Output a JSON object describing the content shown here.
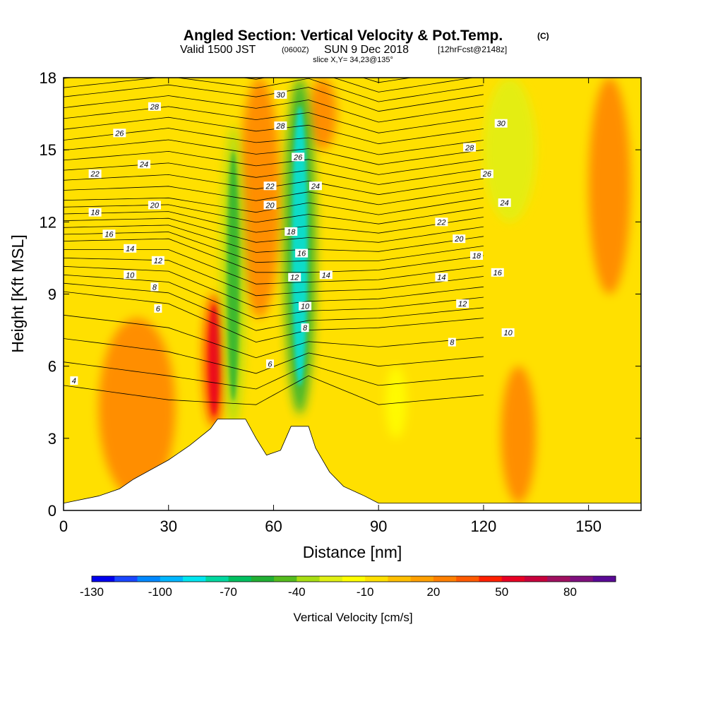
{
  "header": {
    "title": "Angled Section: Vertical Velocity & Pot.Temp.",
    "title_mark": "(C)",
    "valid_prefix": "Valid 1500 JST",
    "valid_utc": "(0600Z)",
    "valid_date": "SUN 9 Dec 2018",
    "forecast": "[12hrFcst@2148z]",
    "slice": "slice X,Y= 34,23@135°"
  },
  "chart_data": {
    "type": "heatmap",
    "xlabel": "Distance [nm]",
    "ylabel": "Height [Kft MSL]",
    "xlim": [
      0,
      165
    ],
    "ylim": [
      0,
      18
    ],
    "x_ticks": [
      0,
      30,
      60,
      90,
      120,
      150
    ],
    "y_ticks": [
      0,
      3,
      6,
      9,
      12,
      15,
      18
    ],
    "colorbar": {
      "label": "Vertical Velocity [cm/s]",
      "tick_labels": [
        "-130",
        "-100",
        "-70",
        "-40",
        "-10",
        "20",
        "50",
        "80"
      ],
      "tick_values": [
        -130,
        -100,
        -70,
        -40,
        -10,
        20,
        50,
        80
      ],
      "range": [
        -130,
        100
      ],
      "colors": [
        "#0000ee",
        "#1a46ff",
        "#0088ff",
        "#00b6ff",
        "#00e6f0",
        "#00d8a0",
        "#00c060",
        "#22b034",
        "#55bc1e",
        "#a8de14",
        "#e0f014",
        "#ffff00",
        "#ffe000",
        "#ffbf00",
        "#ffa000",
        "#ff8000",
        "#ff5a00",
        "#ff2000",
        "#e80024",
        "#c8003c",
        "#a01060",
        "#80107e",
        "#5a0a96"
      ]
    },
    "velocity_features": [
      {
        "kind": "updraft",
        "x": [
          10,
          32
        ],
        "y": [
          0.5,
          8
        ],
        "value": 20
      },
      {
        "kind": "updraft",
        "x": [
          40,
          46
        ],
        "y": [
          3.5,
          9
        ],
        "value": 40
      },
      {
        "kind": "updraft",
        "x": [
          50,
          62
        ],
        "y": [
          8,
          18
        ],
        "value": 25
      },
      {
        "kind": "updraft",
        "x": [
          70,
          78
        ],
        "y": [
          15,
          18
        ],
        "value": 20
      },
      {
        "kind": "downdraft",
        "x": [
          45,
          52
        ],
        "y": [
          3.5,
          16
        ],
        "value": -40
      },
      {
        "kind": "downdraft",
        "x": [
          63,
          72
        ],
        "y": [
          4,
          18
        ],
        "value": -60
      },
      {
        "kind": "downdraft",
        "x": [
          120,
          135
        ],
        "y": [
          12,
          18
        ],
        "value": -25
      },
      {
        "kind": "downdraft",
        "x": [
          92,
          98
        ],
        "y": [
          3,
          6
        ],
        "value": -20
      },
      {
        "kind": "updraft",
        "x": [
          125,
          135
        ],
        "y": [
          0.3,
          6
        ],
        "value": 20
      },
      {
        "kind": "updraft",
        "x": [
          150,
          162
        ],
        "y": [
          9,
          18
        ],
        "value": 20
      }
    ],
    "terrain": [
      {
        "x": 0,
        "y": 0.3
      },
      {
        "x": 10,
        "y": 0.6
      },
      {
        "x": 16,
        "y": 0.9
      },
      {
        "x": 20,
        "y": 1.3
      },
      {
        "x": 25,
        "y": 1.7
      },
      {
        "x": 30,
        "y": 2.1
      },
      {
        "x": 36,
        "y": 2.7
      },
      {
        "x": 42,
        "y": 3.4
      },
      {
        "x": 44,
        "y": 3.8
      },
      {
        "x": 52,
        "y": 3.8
      },
      {
        "x": 55,
        "y": 3.0
      },
      {
        "x": 58,
        "y": 2.3
      },
      {
        "x": 62,
        "y": 2.5
      },
      {
        "x": 65,
        "y": 3.5
      },
      {
        "x": 70,
        "y": 3.5
      },
      {
        "x": 72,
        "y": 2.6
      },
      {
        "x": 76,
        "y": 1.6
      },
      {
        "x": 80,
        "y": 1.0
      },
      {
        "x": 86,
        "y": 0.6
      },
      {
        "x": 90,
        "y": 0.3
      },
      {
        "x": 165,
        "y": 0.3
      }
    ],
    "contour_labels": [
      {
        "text": "28",
        "x": 26,
        "y": 16.8
      },
      {
        "text": "26",
        "x": 16,
        "y": 15.7
      },
      {
        "text": "24",
        "x": 23,
        "y": 14.4
      },
      {
        "text": "22",
        "x": 9,
        "y": 14.0
      },
      {
        "text": "20",
        "x": 26,
        "y": 12.7
      },
      {
        "text": "18",
        "x": 9,
        "y": 12.4
      },
      {
        "text": "16",
        "x": 13,
        "y": 11.5
      },
      {
        "text": "14",
        "x": 19,
        "y": 10.9
      },
      {
        "text": "12",
        "x": 27,
        "y": 10.4
      },
      {
        "text": "10",
        "x": 19,
        "y": 9.8
      },
      {
        "text": "8",
        "x": 26,
        "y": 9.3
      },
      {
        "text": "6",
        "x": 27,
        "y": 8.4
      },
      {
        "text": "4",
        "x": 3,
        "y": 5.4
      },
      {
        "text": "30",
        "x": 62,
        "y": 17.3
      },
      {
        "text": "28",
        "x": 62,
        "y": 16.0
      },
      {
        "text": "26",
        "x": 67,
        "y": 14.7
      },
      {
        "text": "24",
        "x": 72,
        "y": 13.5
      },
      {
        "text": "22",
        "x": 59,
        "y": 13.5
      },
      {
        "text": "20",
        "x": 59,
        "y": 12.7
      },
      {
        "text": "18",
        "x": 65,
        "y": 11.6
      },
      {
        "text": "16",
        "x": 68,
        "y": 10.7
      },
      {
        "text": "14",
        "x": 75,
        "y": 9.8
      },
      {
        "text": "12",
        "x": 66,
        "y": 9.7
      },
      {
        "text": "10",
        "x": 69,
        "y": 8.5
      },
      {
        "text": "8",
        "x": 69,
        "y": 7.6
      },
      {
        "text": "6",
        "x": 59,
        "y": 6.1
      },
      {
        "text": "30",
        "x": 125,
        "y": 16.1
      },
      {
        "text": "28",
        "x": 116,
        "y": 15.1
      },
      {
        "text": "26",
        "x": 121,
        "y": 14.0
      },
      {
        "text": "24",
        "x": 126,
        "y": 12.8
      },
      {
        "text": "22",
        "x": 108,
        "y": 12.0
      },
      {
        "text": "20",
        "x": 113,
        "y": 11.3
      },
      {
        "text": "18",
        "x": 118,
        "y": 10.6
      },
      {
        "text": "16",
        "x": 124,
        "y": 9.9
      },
      {
        "text": "14",
        "x": 108,
        "y": 9.7
      },
      {
        "text": "12",
        "x": 114,
        "y": 8.6
      },
      {
        "text": "10",
        "x": 127,
        "y": 7.4
      },
      {
        "text": "8",
        "x": 111,
        "y": 7.0
      }
    ]
  }
}
